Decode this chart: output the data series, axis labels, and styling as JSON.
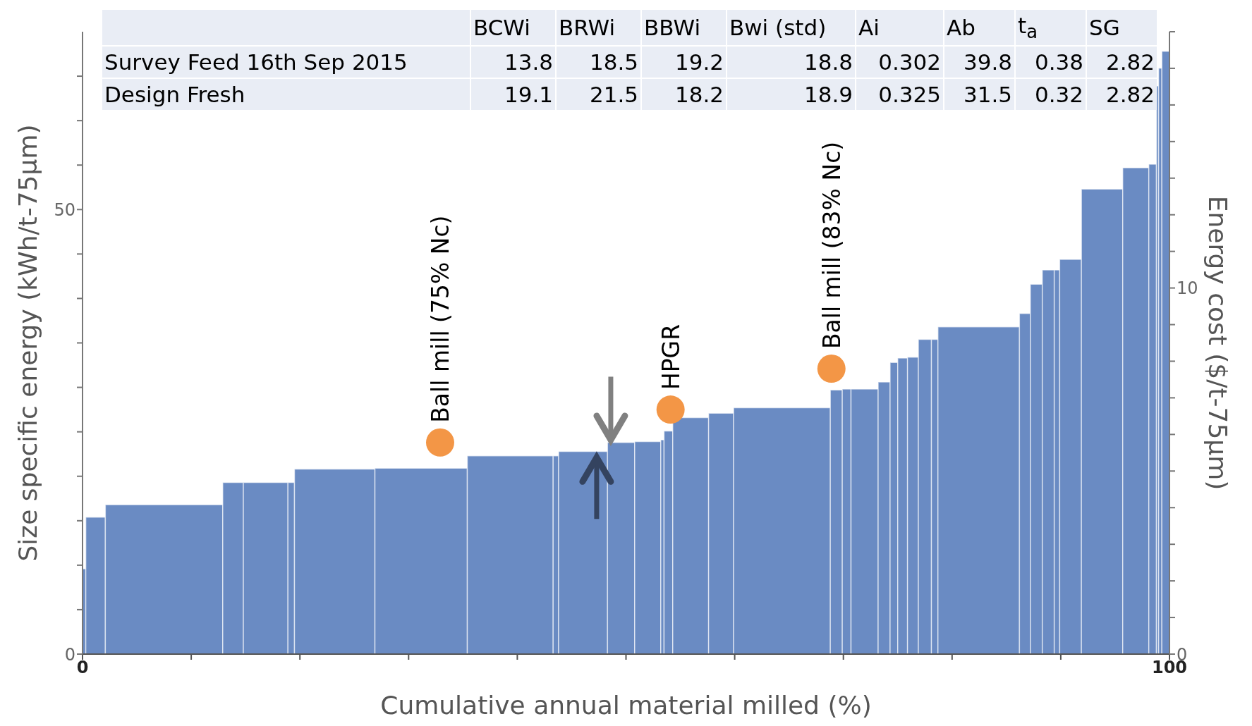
{
  "chart_data": {
    "type": "histogram",
    "xlabel": "Cumulative annual material milled (%)",
    "ylabel": "Size specific energy (kWh/t-75μm)",
    "y2label": "Energy cost ($/t-75μm)",
    "bins": [
      0,
      0.3,
      2.1,
      12.9,
      14.8,
      18.9,
      19.5,
      26.9,
      35.4,
      43.3,
      43.8,
      48.3,
      50.8,
      53.2,
      53.5,
      54.3,
      57.6,
      59.9,
      68.8,
      69.9,
      70.7,
      73.2,
      74.3,
      75.0,
      75.9,
      76.9,
      78.1,
      78.7,
      86.2,
      87.2,
      88.3,
      89.4,
      89.9,
      91.9,
      95.7,
      98.1,
      98.8,
      99.0,
      99.3,
      100
    ],
    "values": [
      9.6,
      15.4,
      16.8,
      19.3,
      19.3,
      19.3,
      20.8,
      20.9,
      22.3,
      22.3,
      22.8,
      23.8,
      23.9,
      24.1,
      25.1,
      26.6,
      27.1,
      27.7,
      29.7,
      29.8,
      29.8,
      30.6,
      32.8,
      33.3,
      33.4,
      35.4,
      35.4,
      36.8,
      38.3,
      41.6,
      43.2,
      43.2,
      44.4,
      52.3,
      54.7,
      55.1,
      63.9,
      65.9,
      67.8
    ],
    "color": "#6a8bc3",
    "series": [
      {
        "type": "scatter",
        "x": [
          32.9,
          54.1,
          68.9
        ],
        "values": [
          23.8,
          27.5,
          32.1
        ],
        "color": "#f39646"
      }
    ],
    "marker": "circle",
    "xlim": [
      0,
      100
    ],
    "xticks": [
      0,
      {
        "value": 10,
        "label": null
      },
      {
        "value": 20,
        "label": null
      },
      {
        "value": 30,
        "label": null
      },
      {
        "value": 40,
        "label": null
      },
      {
        "value": 50,
        "label": null
      },
      {
        "value": 60,
        "label": null
      },
      {
        "value": 70,
        "label": null
      },
      {
        "value": 80,
        "label": null
      },
      {
        "value": 90,
        "label": null
      },
      100
    ],
    "ylim": [
      0,
      70
    ],
    "yticks": [
      0,
      {
        "value": 5,
        "label": null
      },
      {
        "value": 10,
        "label": null
      },
      {
        "value": 15,
        "label": null
      },
      {
        "value": 20,
        "label": null
      },
      {
        "value": 25,
        "label": null
      },
      {
        "value": 30,
        "label": null
      },
      {
        "value": 35,
        "label": null
      },
      {
        "value": 40,
        "label": null
      },
      {
        "value": 45,
        "label": null
      },
      50,
      {
        "value": 55,
        "label": null
      },
      {
        "value": 60,
        "label": null
      },
      {
        "value": 65,
        "label": null
      }
    ],
    "y2lim": [
      0,
      17
    ],
    "y2ticks": [
      0,
      {
        "value": 1,
        "label": null
      },
      {
        "value": 2,
        "label": null
      },
      {
        "value": 3,
        "label": null
      },
      {
        "value": 4,
        "label": null
      },
      {
        "value": 5,
        "label": null
      },
      {
        "value": 6,
        "label": null
      },
      {
        "value": 7,
        "label": null
      },
      {
        "value": 8,
        "label": null
      },
      {
        "value": 9,
        "label": null
      },
      10,
      {
        "value": 11,
        "label": null
      },
      {
        "value": 12,
        "label": null
      },
      {
        "value": 13,
        "label": null
      },
      {
        "value": 14,
        "label": null
      },
      {
        "value": 15,
        "label": null
      },
      {
        "value": 16,
        "label": null
      },
      {
        "value": 17,
        "label": null
      }
    ],
    "annotations": [
      "BCWi",
      "BRWi",
      "BBWi",
      "Bwi (std)",
      "Ai",
      "Ab",
      "t$_{a}$",
      "SG",
      "Survey Feed 16th Sep 2015",
      "13.8",
      "18.5",
      "19.2",
      "18.8",
      "0.302",
      "39.8",
      "0.38",
      "2.82",
      "Design Fresh",
      "19.1",
      "21.5",
      "18.2",
      "18.9",
      "0.325",
      "31.5",
      "0.32",
      "2.82",
      {
        "text": "Ball mill (75% Nc)",
        "x": 32.9,
        "y": 23.8
      },
      {
        "text": "HPGR",
        "x": 54.1,
        "y": 27.5
      },
      {
        "text": "Ball mill (83% Nc)",
        "x": 68.9,
        "y": 32.1
      }
    ]
  }
}
